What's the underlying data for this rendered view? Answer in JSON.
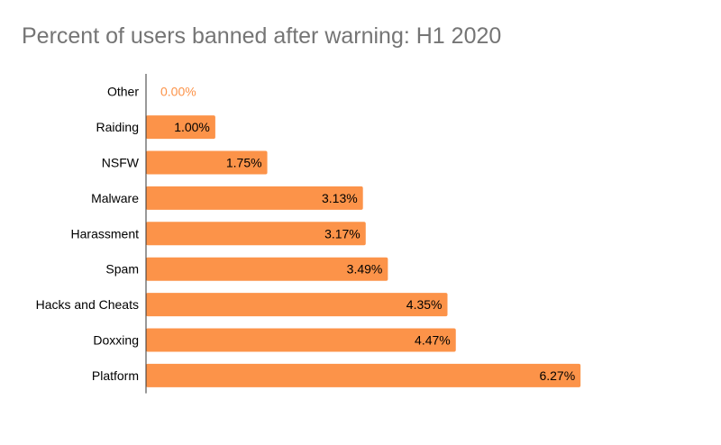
{
  "chart_data": {
    "type": "bar",
    "orientation": "horizontal",
    "title": "Percent of users banned after warning: H1 2020",
    "xlabel": "",
    "ylabel": "",
    "xlim": [
      0,
      7
    ],
    "grid": false,
    "legend": "none",
    "bar_color": "#fc9349",
    "outside_label_color": "#fc9349",
    "inside_label_color": "#000000",
    "categories": [
      "Other",
      "Raiding",
      "NSFW",
      "Malware",
      "Harassment",
      "Spam",
      "Hacks and Cheats",
      "Doxxing",
      "Platform"
    ],
    "values": [
      0.0,
      1.0,
      1.75,
      3.13,
      3.17,
      3.49,
      4.35,
      4.47,
      6.27
    ],
    "value_labels": [
      "0.00%",
      "1.00%",
      "1.75%",
      "3.13%",
      "3.17%",
      "3.49%",
      "4.35%",
      "4.47%",
      "6.27%"
    ]
  }
}
